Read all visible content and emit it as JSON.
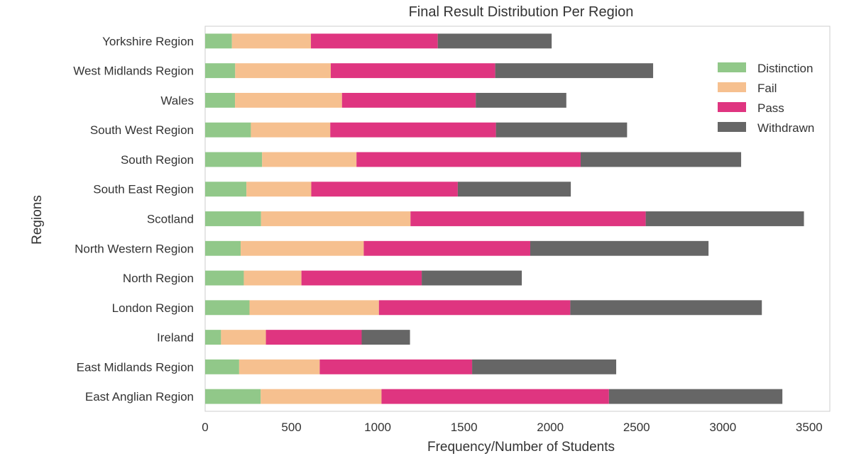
{
  "chart_data": {
    "type": "bar",
    "orientation": "horizontal",
    "stacked": true,
    "title": "Final Result Distribution Per Region",
    "xlabel": "Frequency/Number of Students",
    "ylabel": "Regions",
    "xlim": [
      0,
      3620
    ],
    "xticks": [
      0,
      500,
      1000,
      1500,
      2000,
      2500,
      3000,
      3500
    ],
    "grid": false,
    "legend_position": "top-right",
    "categories": [
      "East Anglian Region",
      "East Midlands Region",
      "Ireland",
      "London Region",
      "North Region",
      "North Western Region",
      "Scotland",
      "South East Region",
      "South Region",
      "South West Region",
      "Wales",
      "West Midlands Region",
      "Yorkshire Region"
    ],
    "series": [
      {
        "name": "Distinction",
        "color": "#91c889",
        "values": [
          322,
          197,
          92,
          257,
          224,
          206,
          324,
          239,
          330,
          265,
          173,
          174,
          155
        ]
      },
      {
        "name": "Fail",
        "color": "#f6c08f",
        "values": [
          700,
          467,
          260,
          750,
          334,
          713,
          866,
          376,
          547,
          460,
          620,
          554,
          458
        ]
      },
      {
        "name": "Pass",
        "color": "#df3580",
        "values": [
          1318,
          883,
          555,
          1109,
          697,
          965,
          1363,
          849,
          1299,
          960,
          775,
          953,
          735
        ]
      },
      {
        "name": "Withdrawn",
        "color": "#666666",
        "values": [
          1005,
          835,
          280,
          1110,
          580,
          1033,
          917,
          655,
          930,
          760,
          525,
          915,
          660
        ]
      }
    ]
  }
}
